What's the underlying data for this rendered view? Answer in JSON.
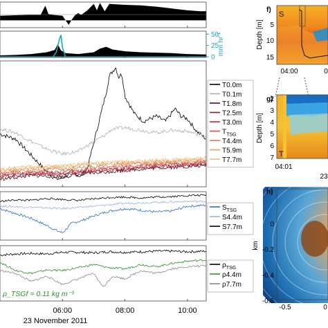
{
  "figure": {
    "time_labels": [
      "06:00",
      "08:00",
      "10:00"
    ],
    "date_label": "23 November 2011",
    "rain_unit": "mm hr",
    "rain_unit_exp": "-1",
    "rho_annotation": "ρ_TSGf = 0.11 kg m⁻³",
    "panel_f": {
      "letter": "f)",
      "region_label": "S",
      "ylabel": "Depth [m]",
      "yticks": [
        "5",
        "10",
        "15"
      ],
      "xticks": [
        "04:00",
        "0"
      ]
    },
    "panel_g": {
      "letter": "g)",
      "region_label": "T",
      "ylabel": "Depth [m]",
      "yticks": [
        "2",
        "3",
        "4",
        "5",
        "6",
        "7"
      ],
      "xticks": [
        "04:01"
      ],
      "extra_label": "23"
    },
    "panel_h": {
      "letter": "h)",
      "ylabel": "km",
      "yticks": [
        "0",
        "-0.2",
        "-0.4",
        "-0.6"
      ],
      "xticks": [
        "-0.5",
        "0"
      ]
    }
  },
  "chart_data": [
    {
      "type": "area",
      "panel": "top",
      "x": [
        4.0,
        4.5,
        4.9,
        5.3,
        5.45,
        5.55,
        5.7,
        6.0,
        6.2,
        6.3,
        6.4,
        6.5,
        6.6,
        6.8,
        7.0,
        7.1,
        7.2,
        7.35,
        7.5,
        8.0,
        8.5,
        9.0,
        9.5,
        10.0,
        10.4,
        10.6
      ],
      "values": [
        0.25,
        0.28,
        0.3,
        0.3,
        0.8,
        0.35,
        0.3,
        0.25,
        -0.25,
        0.05,
        0.28,
        0.4,
        0.3,
        0.55,
        0.9,
        0.55,
        0.95,
        0.5,
        0.9,
        0.85,
        0.82,
        0.75,
        0.65,
        0.55,
        0.5,
        0.5
      ],
      "ylim": [
        -0.4,
        1.0
      ],
      "color": "#000000"
    },
    {
      "type": "area",
      "panel": "rain",
      "x": [
        4.0,
        4.5,
        5.0,
        5.5,
        5.75,
        5.85,
        5.95,
        6.1,
        6.5,
        7.0,
        7.2,
        7.4,
        7.6,
        8.0,
        8.5,
        9.0,
        9.5,
        10.0,
        10.6
      ],
      "values": [
        3,
        4,
        6,
        10,
        15,
        28,
        14,
        8,
        6,
        10,
        18,
        22,
        16,
        12,
        10,
        9,
        8,
        6,
        5
      ],
      "rain_rate": {
        "x": [
          5.7,
          5.8,
          5.9,
          5.95,
          6.0,
          6.1
        ],
        "values": [
          0,
          10,
          38,
          48,
          20,
          0
        ],
        "color": "#1aa7c0"
      },
      "ylim": [
        0,
        55
      ],
      "yticks": [
        0,
        25,
        50
      ]
    },
    {
      "type": "line",
      "panel": "temperature",
      "x_range": [
        4.0,
        10.6
      ],
      "ylim": [
        0,
        10
      ],
      "legend_position": "right",
      "series": [
        {
          "name": "T0.0m",
          "color": "#000000",
          "x": [
            4.0,
            4.5,
            5.0,
            5.5,
            5.8,
            6.0,
            6.3,
            6.6,
            6.8,
            7.0,
            7.2,
            7.4,
            7.5,
            7.7,
            7.8,
            7.9,
            8.0,
            8.3,
            8.6,
            9.0,
            9.3,
            9.6,
            9.8,
            10.0,
            10.3,
            10.6
          ],
          "values": [
            4.2,
            3.8,
            2.5,
            1.2,
            0.6,
            0.7,
            1.2,
            0.8,
            1.5,
            3.5,
            5.5,
            7.5,
            8.8,
            9.5,
            8.7,
            9.0,
            7.2,
            5.8,
            5.2,
            5.6,
            5.2,
            6.2,
            5.6,
            5.4,
            4.4,
            3.8
          ]
        },
        {
          "name": "T0.1m",
          "color": "#b0b0b0",
          "x": [
            4.0,
            4.5,
            5.0,
            5.5,
            6.0,
            6.5,
            7.0,
            7.3,
            7.6,
            8.0,
            8.5,
            9.0,
            9.5,
            10.0,
            10.6
          ],
          "values": [
            4.6,
            4.3,
            3.6,
            3.0,
            2.6,
            2.8,
            3.6,
            4.0,
            4.6,
            4.7,
            4.5,
            4.3,
            4.5,
            4.4,
            4.0
          ]
        },
        {
          "name": "T1.8m",
          "color": "#5a0a14",
          "x": [
            4.0,
            5.0,
            6.0,
            7.0,
            8.0,
            9.0,
            10.0,
            10.6
          ],
          "values": [
            0.6,
            0.9,
            0.8,
            1.1,
            1.3,
            1.5,
            1.6,
            1.7
          ]
        },
        {
          "name": "T2.5m",
          "color": "#8e1a2c",
          "x": [
            4.0,
            5.0,
            6.0,
            7.0,
            8.0,
            9.0,
            10.0,
            10.6
          ],
          "values": [
            0.8,
            1.0,
            1.0,
            1.2,
            1.4,
            1.6,
            1.7,
            1.8
          ]
        },
        {
          "name": "T3.0m",
          "color": "#c0283c",
          "x": [
            4.0,
            5.0,
            6.0,
            7.0,
            8.0,
            9.0,
            10.0,
            10.6
          ],
          "values": [
            0.9,
            1.1,
            1.1,
            1.3,
            1.5,
            1.7,
            1.8,
            1.9
          ]
        },
        {
          "name": "T_TSG",
          "color": "#d8484c",
          "x": [
            4.0,
            5.0,
            6.0,
            7.0,
            8.0,
            9.0,
            10.0,
            10.6
          ],
          "values": [
            1.0,
            1.2,
            1.2,
            1.4,
            1.6,
            1.8,
            1.9,
            2.0
          ]
        },
        {
          "name": "T4.4m",
          "color": "#e07a3c",
          "x": [
            4.0,
            5.0,
            6.0,
            7.0,
            8.0,
            9.0,
            10.0,
            10.6
          ],
          "values": [
            1.2,
            1.3,
            1.4,
            1.6,
            1.8,
            1.9,
            2.0,
            2.1
          ]
        },
        {
          "name": "T5.9m",
          "color": "#ee9a52",
          "x": [
            4.0,
            5.0,
            6.0,
            7.0,
            8.0,
            9.0,
            10.0,
            10.6
          ],
          "values": [
            1.3,
            1.5,
            1.6,
            1.8,
            1.9,
            2.0,
            2.1,
            2.2
          ]
        },
        {
          "name": "T7.7m",
          "color": "#f2c078",
          "x": [
            4.0,
            5.0,
            6.0,
            7.0,
            8.0,
            9.0,
            10.0,
            10.6
          ],
          "values": [
            1.4,
            1.6,
            1.7,
            1.9,
            2.0,
            2.1,
            2.2,
            2.3
          ]
        }
      ]
    },
    {
      "type": "line",
      "panel": "salinity",
      "x_range": [
        4.0,
        10.6
      ],
      "ylim": [
        0,
        10
      ],
      "legend_position": "right",
      "series": [
        {
          "name": "S_TSG",
          "color": "#2a6fb8",
          "x": [
            4.0,
            4.5,
            5.0,
            5.5,
            5.8,
            6.0,
            6.3,
            6.6,
            7.0,
            7.5,
            8.0,
            8.5,
            9.0,
            9.5,
            10.0,
            10.6
          ],
          "values": [
            6.5,
            5.5,
            4.5,
            3.0,
            2.0,
            1.5,
            3.5,
            4.0,
            5.0,
            6.0,
            6.5,
            6.2,
            5.8,
            6.0,
            7.0,
            7.2
          ]
        },
        {
          "name": "S4.4m",
          "color": "#9ab2d6",
          "x": [
            4.0,
            5.0,
            6.0,
            7.0,
            8.0,
            9.0,
            10.0,
            10.6
          ],
          "values": [
            7.0,
            6.8,
            6.5,
            7.0,
            7.6,
            7.8,
            8.0,
            8.0
          ]
        },
        {
          "name": "S7.7m",
          "color": "#000000",
          "x": [
            4.0,
            4.5,
            5.0,
            5.5,
            6.0,
            6.5,
            7.0,
            7.5,
            8.0,
            8.5,
            9.0,
            9.5,
            10.0,
            10.6
          ],
          "values": [
            8.0,
            8.3,
            8.2,
            8.6,
            8.4,
            8.2,
            8.5,
            8.8,
            8.9,
            8.7,
            8.9,
            9.0,
            9.2,
            9.3
          ]
        }
      ]
    },
    {
      "type": "line",
      "panel": "density",
      "x_range": [
        4.0,
        10.6
      ],
      "ylim": [
        0,
        10
      ],
      "legend_position": "right",
      "series": [
        {
          "name": "ρ_TSG",
          "color": "#000000",
          "x": [
            4.0,
            4.5,
            5.0,
            5.5,
            6.0,
            6.5,
            7.0,
            7.5,
            8.0,
            8.5,
            9.0,
            9.5,
            10.0,
            10.6
          ],
          "values": [
            8.3,
            8.5,
            8.6,
            8.5,
            8.8,
            8.8,
            8.7,
            8.9,
            8.8,
            8.9,
            9.0,
            9.0,
            8.9,
            9.0
          ]
        },
        {
          "name": "ρ4.4m",
          "color": "#2f8f2a",
          "x": [
            4.0,
            4.5,
            5.0,
            5.5,
            6.0,
            6.5,
            7.0,
            7.5,
            8.0,
            8.5,
            9.0,
            9.5,
            10.0,
            10.6
          ],
          "values": [
            7.0,
            5.5,
            5.0,
            5.6,
            5.5,
            6.0,
            6.6,
            6.0,
            5.8,
            6.6,
            6.2,
            6.8,
            7.2,
            7.4
          ]
        },
        {
          "name": "ρ7.7m",
          "color": "#888888",
          "x": [
            4.0,
            4.5,
            5.0,
            5.5,
            6.0,
            6.5,
            7.0,
            7.3,
            7.6,
            8.0,
            8.5,
            9.0,
            9.5,
            10.0,
            10.6
          ],
          "values": [
            5.5,
            5.0,
            3.5,
            4.5,
            3.0,
            4.0,
            5.0,
            2.5,
            4.5,
            4.0,
            5.5,
            5.0,
            5.8,
            6.2,
            6.4
          ]
        }
      ]
    }
  ]
}
